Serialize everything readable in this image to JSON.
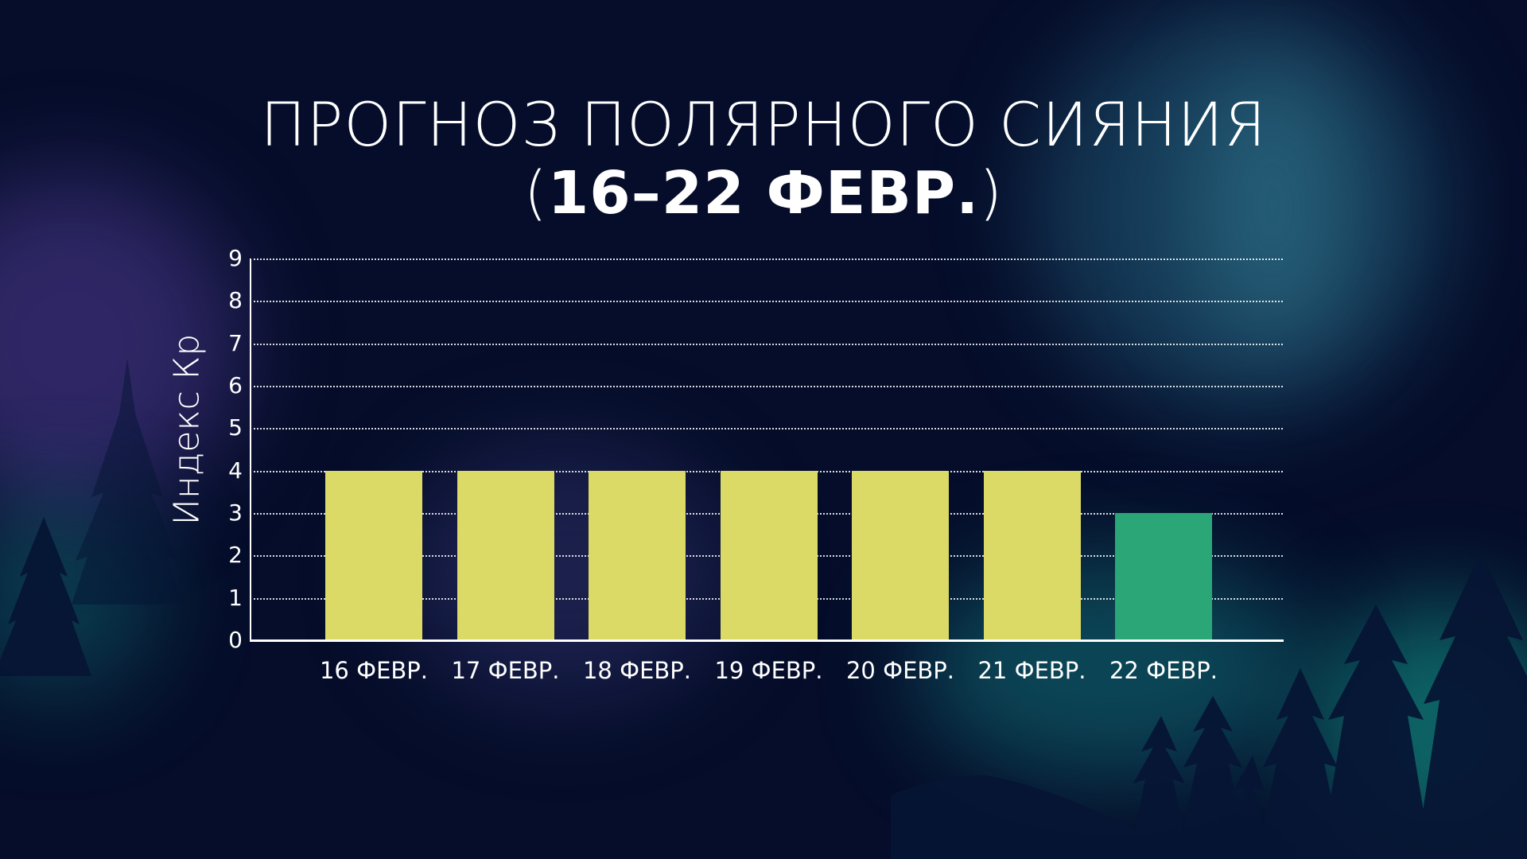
{
  "title": {
    "line1": "ПРОГНОЗ ПОЛЯРНОГО СИЯНИЯ",
    "line2_open": "(",
    "line2_main": "16–22 ФЕВР.",
    "line2_close": ")"
  },
  "colors": {
    "background": "#050d2a",
    "bar_high": "#dcda67",
    "bar_low": "#2aa677",
    "axis": "#ffffff",
    "grid": "#ffffff"
  },
  "chart_data": {
    "type": "bar",
    "title": "ПРОГНОЗ ПОЛЯРНОГО СИЯНИЯ (16–22 ФЕВР.)",
    "xlabel": "",
    "ylabel": "Индекс Кр",
    "categories": [
      "16 ФЕВР.",
      "17 ФЕВР.",
      "18 ФЕВР.",
      "19 ФЕВР.",
      "20 ФЕВР.",
      "21 ФЕВР.",
      "22 ФЕВР."
    ],
    "values": [
      4,
      4,
      4,
      4,
      4,
      4,
      3
    ],
    "bar_colors": [
      "#dcda67",
      "#dcda67",
      "#dcda67",
      "#dcda67",
      "#dcda67",
      "#dcda67",
      "#2aa677"
    ],
    "ylim": [
      0,
      9
    ],
    "yticks": [
      "0",
      "1",
      "2",
      "3",
      "4",
      "5",
      "6",
      "7",
      "8",
      "9"
    ],
    "grid": true,
    "grid_style": "dotted",
    "legend": null
  }
}
